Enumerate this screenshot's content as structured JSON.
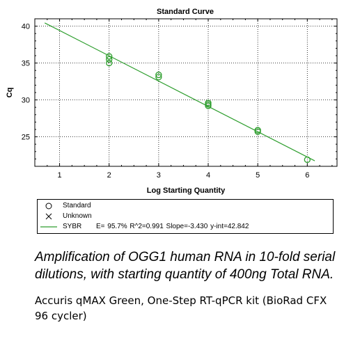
{
  "chart_data": {
    "type": "scatter",
    "title": "Standard Curve",
    "xlabel": "Log Starting Quantity",
    "ylabel": "Cq",
    "xlim": [
      0.5,
      6.6
    ],
    "ylim": [
      21,
      41
    ],
    "xticks": [
      1,
      2,
      3,
      4,
      5,
      6
    ],
    "yticks": [
      25,
      30,
      35,
      40
    ],
    "grid": true,
    "legend_position": "bottom",
    "series": [
      {
        "name": "Standard",
        "marker": "circle",
        "color": "#2e9e2e",
        "points": [
          {
            "x": 2,
            "y": 35.9
          },
          {
            "x": 2,
            "y": 35.5
          },
          {
            "x": 2,
            "y": 35.0
          },
          {
            "x": 3,
            "y": 33.4
          },
          {
            "x": 3,
            "y": 33.1
          },
          {
            "x": 4,
            "y": 29.6
          },
          {
            "x": 4,
            "y": 29.4
          },
          {
            "x": 4,
            "y": 29.2
          },
          {
            "x": 5,
            "y": 25.9
          },
          {
            "x": 5,
            "y": 25.7
          },
          {
            "x": 6,
            "y": 21.9
          }
        ]
      },
      {
        "name": "Unknown",
        "marker": "x",
        "color": "#000000",
        "points": []
      }
    ],
    "fit": {
      "name": "SYBR",
      "color": "#2e9e2e",
      "slope": -3.43,
      "intercept": 42.842,
      "x_range": [
        0.7,
        6.15
      ],
      "stats": "E= 95.7% R^2=0.991 Slope=-3.430 y-int=42.842"
    }
  },
  "caption": {
    "line1": "Amplification of OGG1 human RNA in 10-fold serial",
    "line2": "dilutions, with starting quantity of 400ng Total RNA."
  },
  "subcaption": {
    "line1": "Accuris qMAX Green, One-Step RT-qPCR kit (BioRad CFX",
    "line2": "96 cycler)"
  }
}
